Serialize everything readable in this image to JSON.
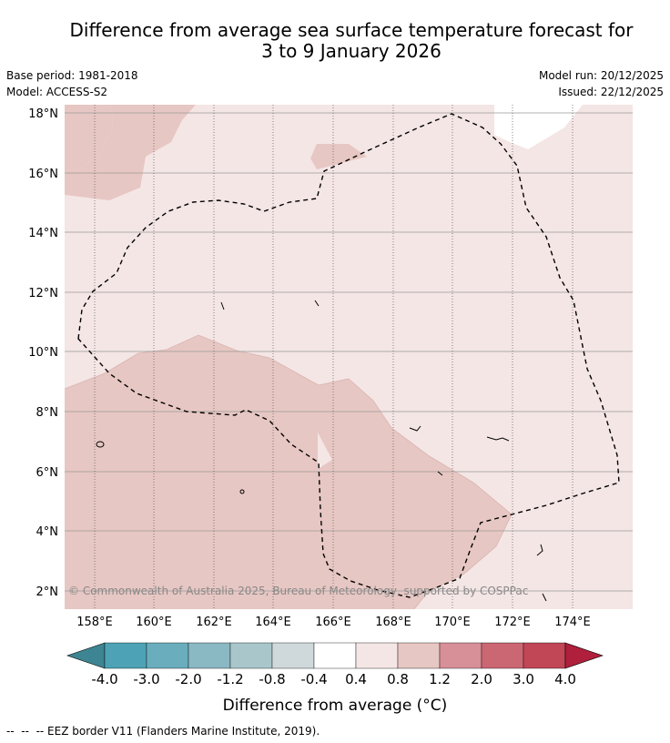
{
  "title": {
    "line1": "Difference from average sea surface temperature forecast for",
    "line2": "3 to 9 January 2026"
  },
  "meta": {
    "base_period": "Base period: 1981-2018",
    "model": "Model: ACCESS-S2",
    "model_run": "Model run: 20/12/2025",
    "issued": "Issued: 22/12/2025"
  },
  "map": {
    "lat_labels": [
      "18°N",
      "16°N",
      "14°N",
      "12°N",
      "10°N",
      "8°N",
      "6°N",
      "4°N",
      "2°N"
    ],
    "lon_labels": [
      "158°E",
      "160°E",
      "162°E",
      "164°E",
      "166°E",
      "168°E",
      "170°E",
      "172°E",
      "174°E"
    ],
    "copyright": "© Commonwealth of Australia 2025, Bureau of Meteorology, supported by COSPPac",
    "fill_colors": {
      "light": "#f4e6e5",
      "medium": "#e7c7c3",
      "none": "#ffffff"
    }
  },
  "colorbar": {
    "label": "Difference from average (°C)",
    "tick_labels": [
      "-4.0",
      "-3.0",
      "-2.0",
      "-1.2",
      "-0.8",
      "-0.4",
      "0.4",
      "0.8",
      "1.2",
      "2.0",
      "3.0",
      "4.0"
    ],
    "colors": [
      "#4da2b5",
      "#6aaebd",
      "#8ab8c3",
      "#a9c7cb",
      "#cfd9db",
      "#ffffff",
      "#f4e6e5",
      "#e7c7c3",
      "#d78f98",
      "#cb6773",
      "#c14656"
    ],
    "under_color": "#3d8592",
    "over_color": "#b01f3b"
  },
  "legend": {
    "eez_note": "--  --  -- EEZ border V11 (Flanders Marine Institute, 2019)."
  }
}
